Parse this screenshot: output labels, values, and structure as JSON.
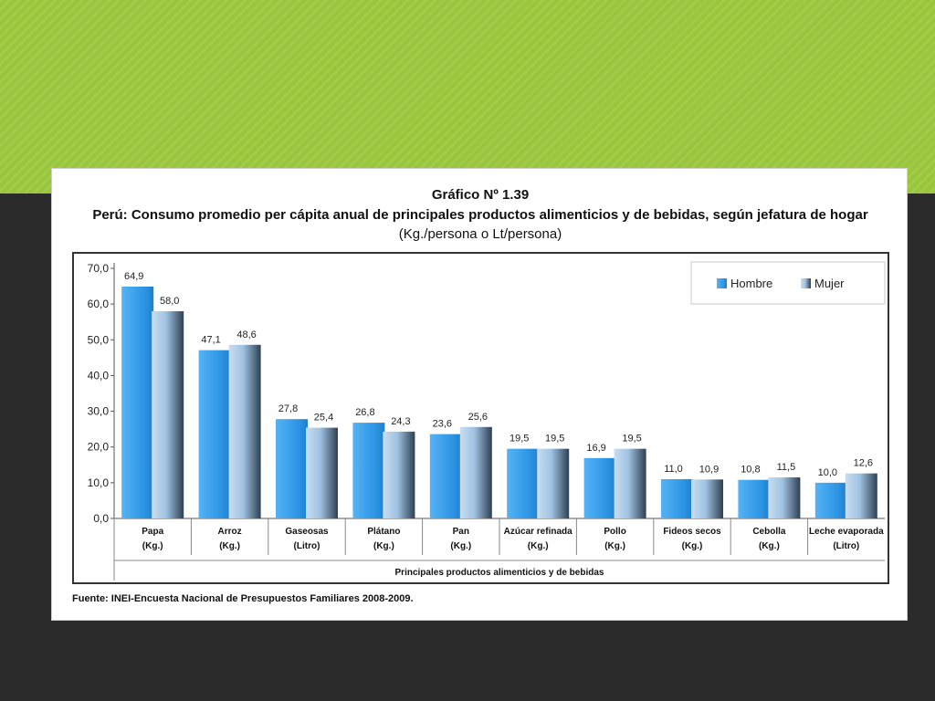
{
  "slide": {
    "colors": {
      "top_band": "#9ac63c",
      "background": "#2b2b2b"
    }
  },
  "chart_data": {
    "type": "bar",
    "title": "Gráfico Nº 1.39",
    "subtitle": "Perú: Consumo promedio per cápita anual de principales productos alimenticios y de bebidas, según jefatura de hogar",
    "units_label": "(Kg./persona o Lt/persona)",
    "xlabel": "Principales productos alimenticios y de bebidas",
    "ylabel": "",
    "ylim": [
      0,
      70
    ],
    "yticks": [
      "0,0",
      "10,0",
      "20,0",
      "30,0",
      "40,0",
      "50,0",
      "60,0",
      "70,0"
    ],
    "grid": false,
    "legend_position": "top-right",
    "categories": [
      {
        "name": "Papa",
        "unit": "(Kg.)"
      },
      {
        "name": "Arroz",
        "unit": "(Kg.)"
      },
      {
        "name": "Gaseosas",
        "unit": "(Litro)"
      },
      {
        "name": "Plátano",
        "unit": "(Kg.)"
      },
      {
        "name": "Pan",
        "unit": "(Kg.)"
      },
      {
        "name": "Azúcar refinada",
        "unit": "(Kg.)"
      },
      {
        "name": "Pollo",
        "unit": "(Kg.)"
      },
      {
        "name": "Fideos secos",
        "unit": "(Kg.)"
      },
      {
        "name": "Cebolla",
        "unit": "(Kg.)"
      },
      {
        "name": "Leche evaporada",
        "unit": "(Litro)"
      }
    ],
    "series": [
      {
        "name": "Hombre",
        "color": "#2f98e6",
        "values": [
          64.9,
          47.1,
          27.8,
          26.8,
          23.6,
          19.5,
          16.9,
          11.0,
          10.8,
          10.0
        ],
        "labels": [
          "64,9",
          "47,1",
          "27,8",
          "26,8",
          "23,6",
          "19,5",
          "16,9",
          "11,0",
          "10,8",
          "10,0"
        ]
      },
      {
        "name": "Mujer",
        "color": "#8db4d8",
        "values": [
          58.0,
          48.6,
          25.4,
          24.3,
          25.6,
          19.5,
          19.5,
          10.9,
          11.5,
          12.6
        ],
        "labels": [
          "58,0",
          "48,6",
          "25,4",
          "24,3",
          "25,6",
          "19,5",
          "19,5",
          "10,9",
          "11,5",
          "12,6"
        ]
      }
    ],
    "source": "Fuente: INEI-Encuesta Nacional de Presupuestos Familiares 2008-2009."
  }
}
